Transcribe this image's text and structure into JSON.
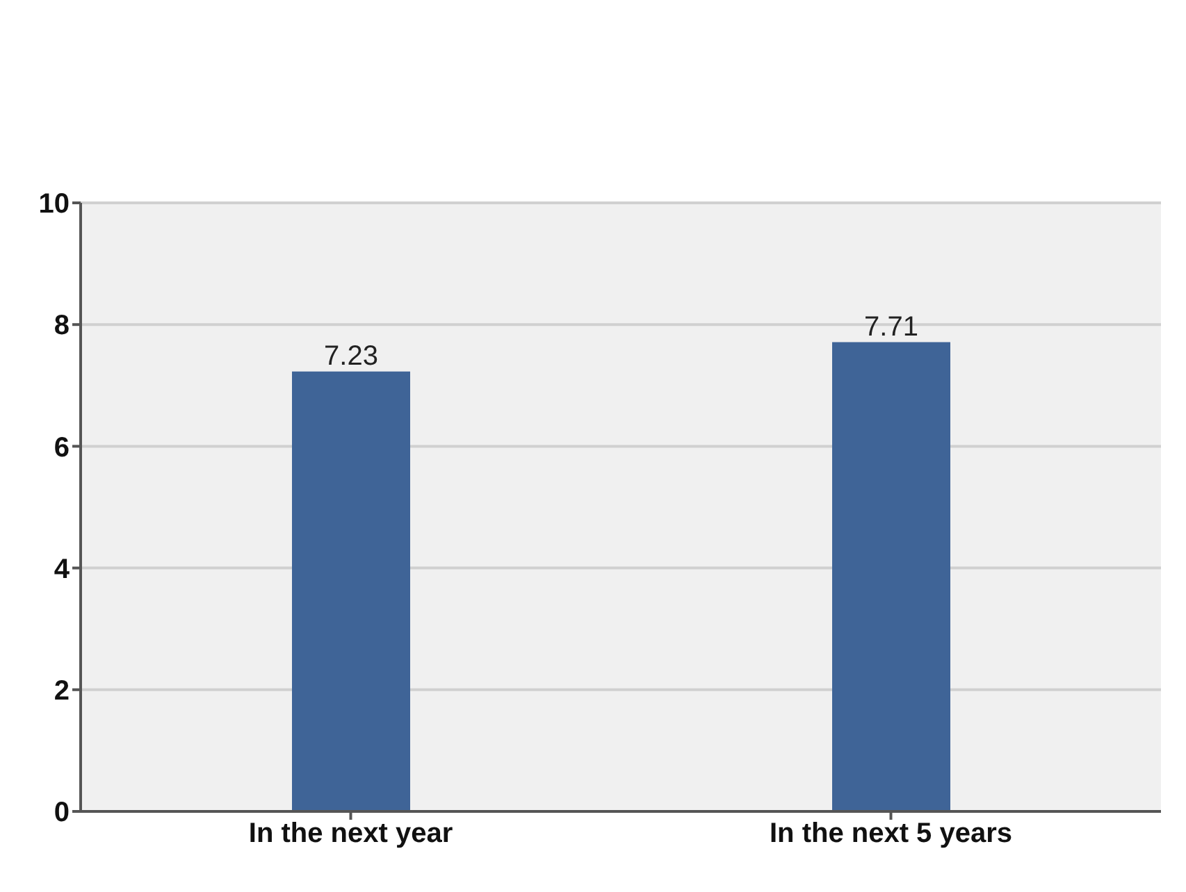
{
  "chart_data": {
    "type": "bar",
    "categories": [
      "In the next year",
      "In the next 5 years"
    ],
    "values": [
      7.23,
      7.71
    ],
    "color": "#3f6497",
    "ylim": [
      0,
      10
    ],
    "yticks": [
      0,
      2,
      4,
      6,
      8,
      10
    ],
    "grid": "y",
    "data_labels": true
  }
}
